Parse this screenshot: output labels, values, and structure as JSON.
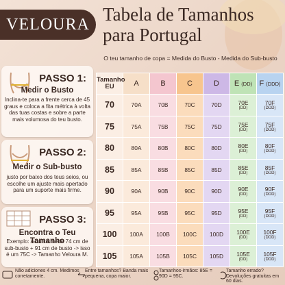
{
  "header": {
    "brand": "VELOURA",
    "title": "Tabela de Tamanhos para Portugal"
  },
  "formula": "O teu tamanho de copa = Medida do Busto - Medida do Sub-busto",
  "steps": [
    {
      "title": "PASSO 1:",
      "heading": "Medir o Busto",
      "text": "Inclina-te para a frente cerca de 45 graus e coloca a fita métrica à volta das tuas costas e sobre a parte mais volumosa do teu busto."
    },
    {
      "title": "PASSO 2:",
      "heading": "Medir o Sub-busto",
      "text": "justo por baixo dos teus seios, ou escolhe um ajuste mais apertado para um suporte mais firme."
    },
    {
      "title": "PASSO 3:",
      "heading": "Encontra o Teu Tamanho",
      "text": "Exemplo: A Luísa mede 74 cm de sub-busto + 91 cm de busto -> isso é um 75C -> Tamanho Veloura M."
    }
  ],
  "table": {
    "columns": [
      {
        "name": "Tamanho EU"
      },
      {
        "name": "A"
      },
      {
        "name": "B"
      },
      {
        "name": "C"
      },
      {
        "name": "D"
      },
      {
        "name": "E",
        "note": "(DD)"
      },
      {
        "name": "F",
        "note": "(DDD)"
      }
    ],
    "rows": [
      {
        "size": "70",
        "cells": [
          {
            "code": "70A"
          },
          {
            "code": "70B"
          },
          {
            "code": "70C"
          },
          {
            "code": "70D"
          },
          {
            "code": "70E",
            "note": "(DD)"
          },
          {
            "code": "70F",
            "note": "(DDD)"
          }
        ]
      },
      {
        "size": "75",
        "cells": [
          {
            "code": "75A"
          },
          {
            "code": "75B"
          },
          {
            "code": "75C"
          },
          {
            "code": "75D"
          },
          {
            "code": "75E",
            "note": "(DD)"
          },
          {
            "code": "75F",
            "note": "(DDD)"
          }
        ]
      },
      {
        "size": "80",
        "cells": [
          {
            "code": "80A"
          },
          {
            "code": "80B"
          },
          {
            "code": "80C"
          },
          {
            "code": "80D"
          },
          {
            "code": "80E",
            "note": "(DD)"
          },
          {
            "code": "80F",
            "note": "(DDD)"
          }
        ]
      },
      {
        "size": "85",
        "cells": [
          {
            "code": "85A"
          },
          {
            "code": "85B"
          },
          {
            "code": "85C"
          },
          {
            "code": "85D"
          },
          {
            "code": "85E",
            "note": "(DD)"
          },
          {
            "code": "85F",
            "note": "(DDD)"
          }
        ]
      },
      {
        "size": "90",
        "cells": [
          {
            "code": "90A"
          },
          {
            "code": "90B"
          },
          {
            "code": "90C"
          },
          {
            "code": "90D"
          },
          {
            "code": "90E",
            "note": "(DD)"
          },
          {
            "code": "90F",
            "note": "(DDD)"
          }
        ]
      },
      {
        "size": "95",
        "cells": [
          {
            "code": "95A"
          },
          {
            "code": "95B"
          },
          {
            "code": "95C"
          },
          {
            "code": "95D"
          },
          {
            "code": "95E",
            "note": "(DD)"
          },
          {
            "code": "95F",
            "note": "(DDD)"
          }
        ]
      },
      {
        "size": "100",
        "cells": [
          {
            "code": "100A"
          },
          {
            "code": "100B"
          },
          {
            "code": "100C"
          },
          {
            "code": "100D"
          },
          {
            "code": "100E",
            "note": "(DD)"
          },
          {
            "code": "100F",
            "note": "(DDD)"
          }
        ]
      },
      {
        "size": "105",
        "cells": [
          {
            "code": "105A"
          },
          {
            "code": "105B"
          },
          {
            "code": "105C"
          },
          {
            "code": "105D"
          },
          {
            "code": "105E",
            "note": "(DD)"
          },
          {
            "code": "105F",
            "note": "(DDD)"
          }
        ]
      }
    ]
  },
  "footer": [
    "Não adiciones 4 cm. Medimos corretamente.",
    "Entre tamanhos? Banda mais pequena, copa maior.",
    "Tamanhos-irmãos: 85E = 90D = 95C.",
    "Tamanho errado? Devoluções gratuitas em 60 dias."
  ]
}
